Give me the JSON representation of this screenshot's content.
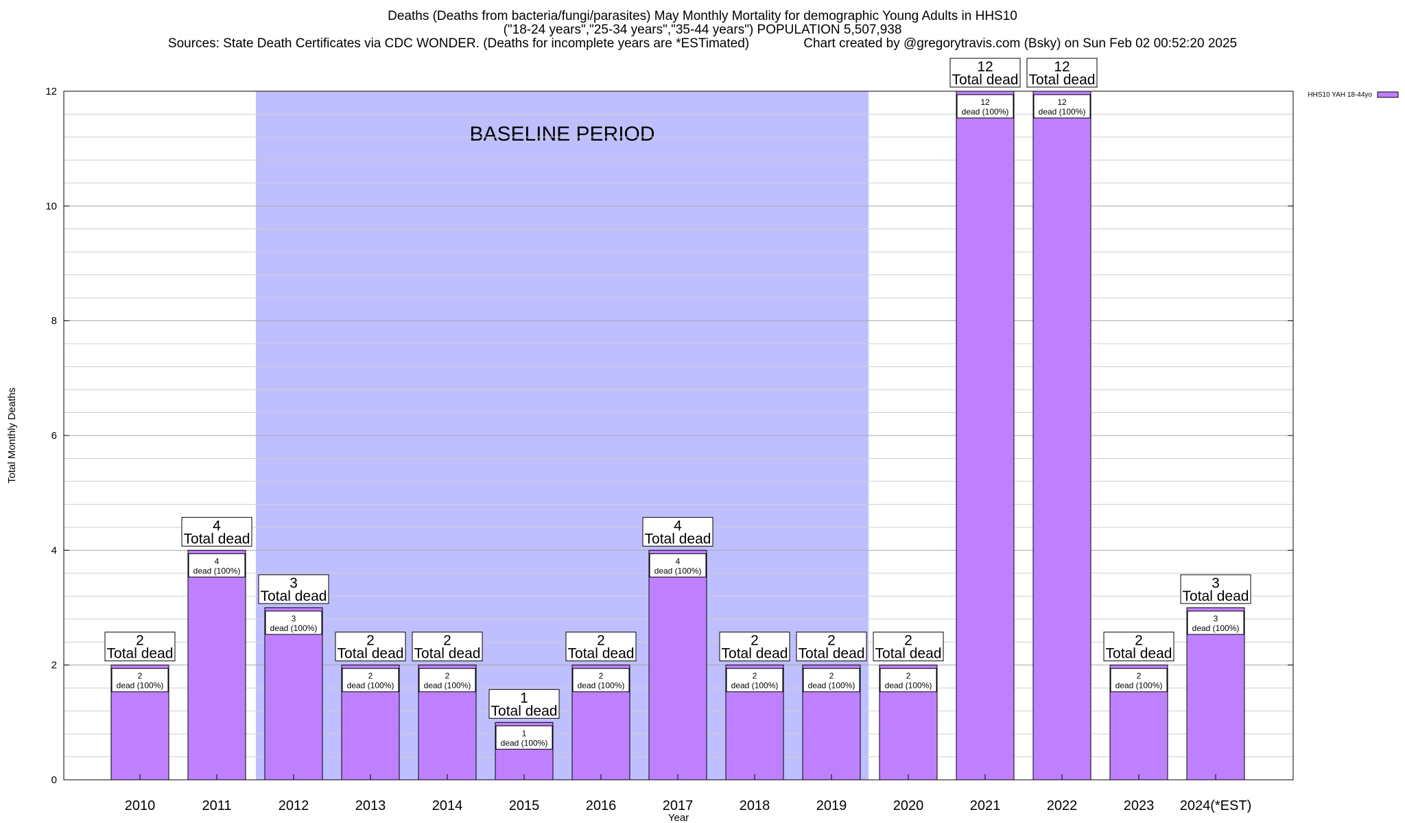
{
  "header": {
    "line1": "Deaths (Deaths from bacteria/fungi/parasites) May Monthly Mortality for demographic Young Adults in HHS10",
    "line2": "(\"18-24 years\",\"25-34 years\",\"35-44 years\") POPULATION 5,507,938",
    "line3": "Sources: State Death Certificates via CDC WONDER. (Deaths for incomplete years are *ESTimated)               Chart created by @gregorytravis.com (Bsky) on Sun Feb 02 00:52:20 2025"
  },
  "chart_data": {
    "type": "bar",
    "xlabel": "Year",
    "ylabel": "Total Monthly Deaths",
    "ylim": [
      0,
      12
    ],
    "yticks": [
      0,
      2,
      4,
      6,
      8,
      10,
      12
    ],
    "grid": true,
    "legend_position": "top-right",
    "categories": [
      "2010",
      "2011",
      "2012",
      "2013",
      "2014",
      "2015",
      "2016",
      "2017",
      "2018",
      "2019",
      "2020",
      "2021",
      "2022",
      "2023",
      "2024(*EST)"
    ],
    "series": [
      {
        "name": "HHS10 YAH 18-44yo",
        "color": "#bf80ff",
        "values": [
          2,
          4,
          3,
          2,
          2,
          1,
          2,
          4,
          2,
          2,
          2,
          12,
          12,
          2,
          3
        ]
      }
    ],
    "bar_label_total_suffix": "Total dead",
    "bar_label_inner_suffix": "dead (100%)",
    "baseline": {
      "label": "BASELINE PERIOD",
      "from": "2012",
      "to": "2019",
      "color": "#bfbfff"
    }
  }
}
